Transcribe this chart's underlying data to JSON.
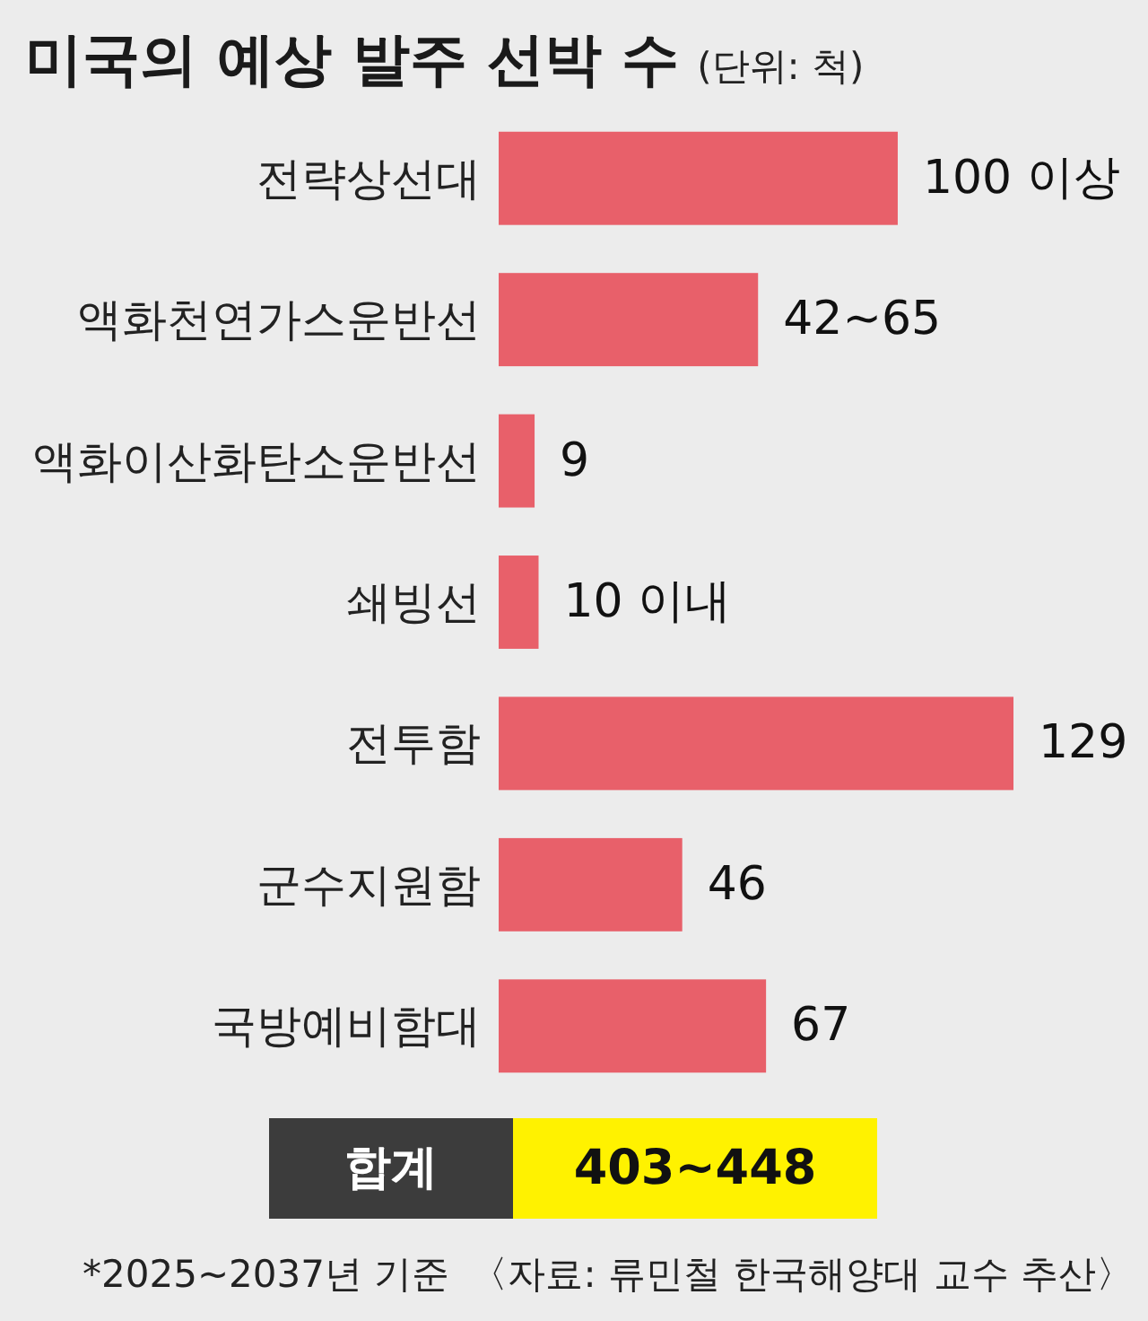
{
  "chart_data": {
    "type": "bar",
    "orientation": "horizontal",
    "title": "미국의 예상 발주 선박 수",
    "subtitle": "(단위: 척)",
    "categories": [
      "전략상선대",
      "액화천연가스운반선",
      "액화이산화탄소운반선",
      "쇄빙선",
      "전투함",
      "군수지원함",
      "국방예비함대"
    ],
    "values": [
      100,
      65,
      9,
      10,
      129,
      46,
      67
    ],
    "value_labels": [
      "100 이상",
      "42~65",
      "9",
      "10 이내",
      "129",
      "46",
      "67"
    ],
    "color": "#e8606a",
    "annotations": [
      "합계",
      "403~448",
      "*2025~2037년 기준",
      "〈자료: 류민철 한국해양대 교수 추산〉"
    ]
  }
}
